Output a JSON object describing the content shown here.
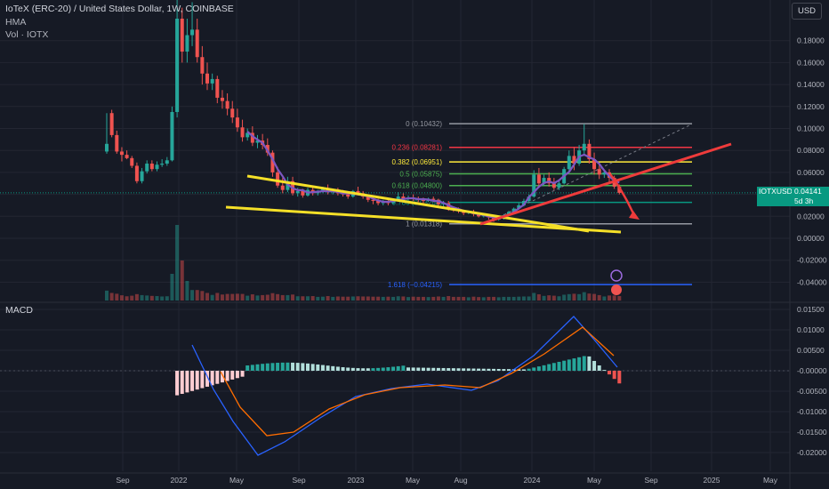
{
  "header": {
    "title": "IoTeX (ERC-20) / United States Dollar, 1W, COINBASE",
    "indicator_1": "HMA",
    "indicator_2": "Vol · IOTX",
    "macd_label": "MACD"
  },
  "toolbar": {
    "currency_button": "USD"
  },
  "price_tag": {
    "symbol": "IOTXUSD",
    "countdown": "5d 3h",
    "price": "0.04141"
  },
  "colors": {
    "up": "#26a69a",
    "down": "#ef5350",
    "trend": "#f5e028",
    "hma": "#7e57c2",
    "macd": "#2962ff",
    "signal": "#ff6d00"
  },
  "chart_data": {
    "type": "candlestick",
    "x_labels": [
      "Sep",
      "2022",
      "May",
      "Sep",
      "2023",
      "May",
      "Aug",
      "2024",
      "May",
      "Sep",
      "2025",
      "May"
    ],
    "y_labels": [
      "0.18000",
      "0.16000",
      "0.14000",
      "0.12000",
      "0.10000",
      "0.08000",
      "0.06000",
      "0.04000",
      "0.02000",
      "0.00000",
      "-0.02000",
      "-0.04000"
    ],
    "ylim": [
      -0.045,
      0.2
    ],
    "macd_y_labels": [
      "0.01500",
      "0.01000",
      "0.00500",
      "-0.00000",
      "-0.00500",
      "-0.01000",
      "-0.01500",
      "-0.02000"
    ],
    "macd_ylim": [
      -0.022,
      0.017
    ],
    "fib_levels": [
      {
        "label": "0 (0.10432)",
        "value": 0.10432,
        "color": "#9598a1"
      },
      {
        "label": "0.236 (0.08281)",
        "value": 0.08281,
        "color": "#f23645"
      },
      {
        "label": "0.382 (0.06951)",
        "value": 0.06951,
        "color": "#ffeb3b"
      },
      {
        "label": "0.5 (0.05875)",
        "value": 0.05875,
        "color": "#4caf50"
      },
      {
        "label": "0.618 (0.04800)",
        "value": 0.048,
        "color": "#4caf50"
      },
      {
        "label": "0.786 (0.03268)",
        "value": 0.03268,
        "color": "#089981"
      },
      {
        "label": "1 (0.01318)",
        "value": 0.01318,
        "color": "#9598a1"
      },
      {
        "label": "1.618 (−0.04215)",
        "value": -0.04215,
        "color": "#2962ff"
      }
    ],
    "candles": [
      [
        0.079,
        0.114,
        0.086,
        0.077
      ],
      [
        0.114,
        0.117,
        0.094,
        0.092
      ],
      [
        0.094,
        0.098,
        0.079,
        0.077
      ],
      [
        0.079,
        0.083,
        0.076,
        0.07
      ],
      [
        0.076,
        0.08,
        0.073,
        0.072
      ],
      [
        0.073,
        0.075,
        0.066,
        0.064
      ],
      [
        0.066,
        0.069,
        0.052,
        0.05
      ],
      [
        0.052,
        0.064,
        0.061,
        0.05
      ],
      [
        0.061,
        0.071,
        0.068,
        0.059
      ],
      [
        0.068,
        0.071,
        0.063,
        0.061
      ],
      [
        0.063,
        0.07,
        0.067,
        0.061
      ],
      [
        0.067,
        0.072,
        0.068,
        0.065
      ],
      [
        0.068,
        0.074,
        0.071,
        0.066
      ],
      [
        0.071,
        0.12,
        0.115,
        0.07
      ],
      [
        0.115,
        0.23,
        0.2,
        0.11
      ],
      [
        0.2,
        0.21,
        0.17,
        0.16
      ],
      [
        0.17,
        0.2,
        0.185,
        0.16
      ],
      [
        0.185,
        0.215,
        0.19,
        0.175
      ],
      [
        0.19,
        0.2,
        0.165,
        0.16
      ],
      [
        0.165,
        0.175,
        0.15,
        0.14
      ],
      [
        0.15,
        0.16,
        0.141,
        0.135
      ],
      [
        0.141,
        0.15,
        0.145,
        0.135
      ],
      [
        0.145,
        0.148,
        0.128,
        0.123
      ],
      [
        0.128,
        0.135,
        0.125,
        0.118
      ],
      [
        0.125,
        0.132,
        0.118,
        0.112
      ],
      [
        0.118,
        0.125,
        0.11,
        0.105
      ],
      [
        0.11,
        0.118,
        0.101,
        0.097
      ],
      [
        0.101,
        0.108,
        0.092,
        0.088
      ],
      [
        0.092,
        0.1,
        0.096,
        0.089
      ],
      [
        0.096,
        0.102,
        0.087,
        0.084
      ],
      [
        0.087,
        0.094,
        0.089,
        0.082
      ],
      [
        0.089,
        0.095,
        0.085,
        0.081
      ],
      [
        0.085,
        0.091,
        0.078,
        0.075
      ],
      [
        0.078,
        0.08,
        0.06,
        0.056
      ],
      [
        0.06,
        0.065,
        0.048,
        0.046
      ],
      [
        0.048,
        0.055,
        0.044,
        0.041
      ],
      [
        0.044,
        0.056,
        0.052,
        0.042
      ],
      [
        0.052,
        0.056,
        0.041,
        0.039
      ],
      [
        0.041,
        0.046,
        0.043,
        0.038
      ],
      [
        0.043,
        0.045,
        0.039,
        0.037
      ],
      [
        0.039,
        0.046,
        0.044,
        0.038
      ],
      [
        0.044,
        0.048,
        0.041,
        0.039
      ],
      [
        0.041,
        0.044,
        0.043,
        0.039
      ],
      [
        0.043,
        0.047,
        0.045,
        0.041
      ],
      [
        0.045,
        0.049,
        0.042,
        0.04
      ],
      [
        0.042,
        0.045,
        0.043,
        0.04
      ],
      [
        0.043,
        0.046,
        0.041,
        0.039
      ],
      [
        0.041,
        0.044,
        0.04,
        0.038
      ],
      [
        0.04,
        0.042,
        0.038,
        0.036
      ],
      [
        0.038,
        0.044,
        0.043,
        0.037
      ],
      [
        0.043,
        0.047,
        0.041,
        0.039
      ],
      [
        0.041,
        0.043,
        0.038,
        0.036
      ],
      [
        0.038,
        0.04,
        0.035,
        0.033
      ],
      [
        0.035,
        0.037,
        0.034,
        0.031
      ],
      [
        0.034,
        0.036,
        0.032,
        0.03
      ],
      [
        0.032,
        0.035,
        0.033,
        0.03
      ],
      [
        0.033,
        0.036,
        0.032,
        0.03
      ],
      [
        0.032,
        0.036,
        0.035,
        0.031
      ],
      [
        0.035,
        0.042,
        0.038,
        0.034
      ],
      [
        0.038,
        0.041,
        0.036,
        0.034
      ],
      [
        0.036,
        0.039,
        0.037,
        0.035
      ],
      [
        0.037,
        0.04,
        0.036,
        0.034
      ],
      [
        0.036,
        0.038,
        0.035,
        0.033
      ],
      [
        0.035,
        0.037,
        0.034,
        0.032
      ],
      [
        0.034,
        0.037,
        0.036,
        0.033
      ],
      [
        0.036,
        0.038,
        0.035,
        0.033
      ],
      [
        0.035,
        0.036,
        0.031,
        0.029
      ],
      [
        0.031,
        0.034,
        0.032,
        0.029
      ],
      [
        0.032,
        0.034,
        0.027,
        0.025
      ],
      [
        0.027,
        0.029,
        0.026,
        0.024
      ],
      [
        0.026,
        0.028,
        0.025,
        0.023
      ],
      [
        0.025,
        0.026,
        0.023,
        0.021
      ],
      [
        0.023,
        0.025,
        0.024,
        0.022
      ],
      [
        0.024,
        0.026,
        0.022,
        0.02
      ],
      [
        0.022,
        0.023,
        0.02,
        0.019
      ],
      [
        0.02,
        0.022,
        0.021,
        0.019
      ],
      [
        0.021,
        0.022,
        0.019,
        0.017
      ],
      [
        0.019,
        0.02,
        0.017,
        0.015
      ],
      [
        0.017,
        0.019,
        0.018,
        0.016
      ],
      [
        0.018,
        0.022,
        0.021,
        0.017
      ],
      [
        0.021,
        0.025,
        0.024,
        0.02
      ],
      [
        0.024,
        0.028,
        0.027,
        0.023
      ],
      [
        0.027,
        0.032,
        0.03,
        0.026
      ],
      [
        0.03,
        0.036,
        0.034,
        0.029
      ],
      [
        0.034,
        0.04,
        0.038,
        0.033
      ],
      [
        0.038,
        0.062,
        0.058,
        0.037
      ],
      [
        0.058,
        0.064,
        0.05,
        0.046
      ],
      [
        0.05,
        0.058,
        0.055,
        0.048
      ],
      [
        0.055,
        0.06,
        0.05,
        0.047
      ],
      [
        0.05,
        0.055,
        0.046,
        0.044
      ],
      [
        0.046,
        0.052,
        0.05,
        0.044
      ],
      [
        0.05,
        0.065,
        0.063,
        0.049
      ],
      [
        0.063,
        0.08,
        0.075,
        0.061
      ],
      [
        0.075,
        0.083,
        0.068,
        0.062
      ],
      [
        0.068,
        0.085,
        0.08,
        0.066
      ],
      [
        0.08,
        0.104,
        0.086,
        0.075
      ],
      [
        0.086,
        0.09,
        0.072,
        0.068
      ],
      [
        0.072,
        0.078,
        0.063,
        0.058
      ],
      [
        0.063,
        0.068,
        0.058,
        0.054
      ],
      [
        0.058,
        0.062,
        0.06,
        0.055
      ],
      [
        0.06,
        0.063,
        0.055,
        0.051
      ],
      [
        0.055,
        0.057,
        0.047,
        0.045
      ],
      [
        0.047,
        0.049,
        0.0414,
        0.04
      ]
    ],
    "trend_lines": [
      {
        "name": "upper",
        "from": [
          22,
          0.056
        ],
        "to": [
          72,
          0.024
        ]
      },
      {
        "name": "lower",
        "from": [
          0,
          0.028
        ],
        "to": [
          80,
          0.006
        ]
      },
      {
        "name": "support",
        "from": [
          60,
          0.012
        ],
        "to": [
          120,
          0.085
        ]
      }
    ]
  }
}
